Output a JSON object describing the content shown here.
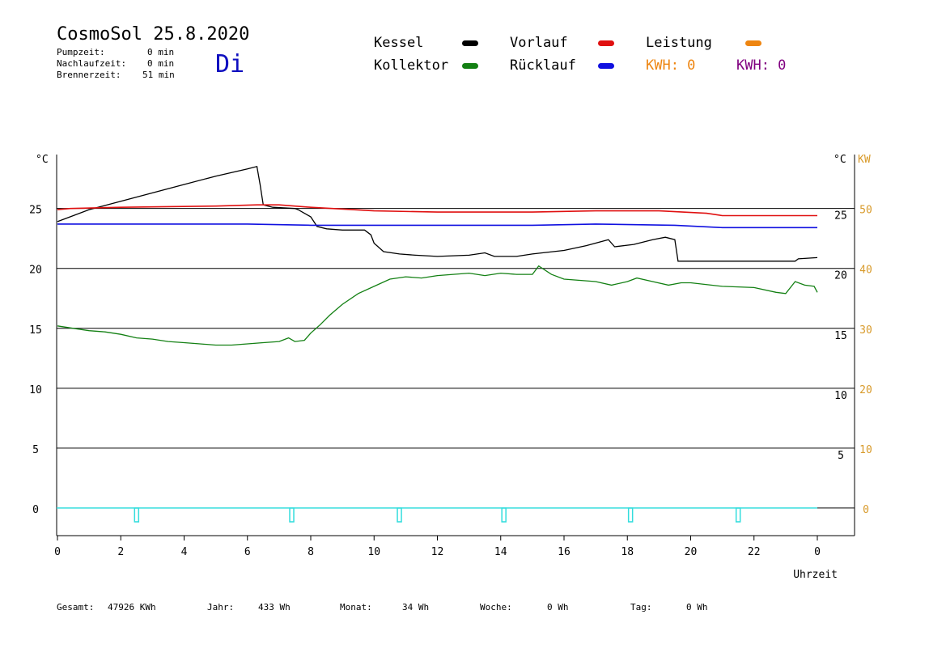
{
  "header": {
    "title": "CosmoSol 25.8.2020",
    "pumpzeit_label": "Pumpzeit:",
    "pumpzeit_value": "0 min",
    "nachlauf_label": "Nachlaufzeit:",
    "nachlauf_value": "0 min",
    "brenner_label": "Brennerzeit:",
    "brenner_value": "51 min",
    "day": "Di"
  },
  "legend": {
    "kessel": "Kessel",
    "kollektor": "Kollektor",
    "vorlauf": "Vorlauf",
    "ruecklauf": "Rücklauf",
    "leistung": "Leistung",
    "kwh1": "KWH: 0",
    "kwh2": "KWH: 0"
  },
  "colors": {
    "kessel": "#000000",
    "kollektor": "#138013",
    "vorlauf": "#e01010",
    "ruecklauf": "#1010e0",
    "leistung": "#ee8510",
    "kwh2": "#800080",
    "pump": "#33dddd",
    "orange_axis": "#d89a2a"
  },
  "stats": {
    "gesamt_label": "Gesamt:",
    "gesamt_value": "47926 KWh",
    "jahr_label": "Jahr:",
    "jahr_value": "433 Wh",
    "monat_label": "Monat:",
    "monat_value": "34 Wh",
    "woche_label": "Woche:",
    "woche_value": "0 Wh",
    "tag_label": "Tag:",
    "tag_value": "0 Wh"
  },
  "chart_data": {
    "type": "line",
    "xlabel": "Uhrzeit",
    "ylabel_left": "°C",
    "ylabel_right": "°C",
    "ylabel_right2": "KW",
    "xlim": [
      0,
      24
    ],
    "ylim": [
      -2.3,
      29.5
    ],
    "x_ticks": [
      "0",
      "2",
      "4",
      "6",
      "8",
      "10",
      "12",
      "14",
      "16",
      "18",
      "20",
      "22",
      "0"
    ],
    "y_ticks_left": [
      "0",
      "5",
      "10",
      "15",
      "20",
      "25"
    ],
    "y_ticks_right": [
      "5",
      "10",
      "15",
      "20",
      "25"
    ],
    "y_ticks_right2": [
      "0",
      "10",
      "20",
      "30",
      "40",
      "50"
    ],
    "gridlines": [
      0,
      5,
      10,
      15,
      20,
      25
    ],
    "series": [
      {
        "name": "Kessel",
        "color_key": "kessel",
        "points": [
          [
            0,
            23.9
          ],
          [
            0.5,
            24.4
          ],
          [
            1,
            24.9
          ],
          [
            2,
            25.6
          ],
          [
            3,
            26.3
          ],
          [
            4,
            27.0
          ],
          [
            5,
            27.7
          ],
          [
            6,
            28.3
          ],
          [
            6.3,
            28.5
          ],
          [
            6.4,
            27.0
          ],
          [
            6.5,
            25.3
          ],
          [
            6.8,
            25.1
          ],
          [
            7.5,
            25.0
          ],
          [
            7.6,
            24.9
          ],
          [
            8,
            24.3
          ],
          [
            8.2,
            23.5
          ],
          [
            8.5,
            23.3
          ],
          [
            9,
            23.2
          ],
          [
            9.7,
            23.2
          ],
          [
            9.9,
            22.8
          ],
          [
            10,
            22.1
          ],
          [
            10.3,
            21.4
          ],
          [
            10.8,
            21.2
          ],
          [
            11.3,
            21.1
          ],
          [
            12,
            21.0
          ],
          [
            13,
            21.1
          ],
          [
            13.5,
            21.3
          ],
          [
            13.8,
            21.0
          ],
          [
            14.5,
            21.0
          ],
          [
            15,
            21.2
          ],
          [
            16,
            21.5
          ],
          [
            16.7,
            21.9
          ],
          [
            17.4,
            22.4
          ],
          [
            17.6,
            21.8
          ],
          [
            18.2,
            22.0
          ],
          [
            18.8,
            22.4
          ],
          [
            19.2,
            22.6
          ],
          [
            19.5,
            22.4
          ],
          [
            19.6,
            20.6
          ],
          [
            20,
            20.6
          ],
          [
            22,
            20.6
          ],
          [
            23.3,
            20.6
          ],
          [
            23.4,
            20.8
          ],
          [
            24,
            20.9
          ]
        ]
      },
      {
        "name": "Vorlauf",
        "color_key": "vorlauf",
        "points": [
          [
            0,
            24.9
          ],
          [
            0.4,
            25.0
          ],
          [
            2,
            25.1
          ],
          [
            5,
            25.2
          ],
          [
            6.3,
            25.3
          ],
          [
            7,
            25.3
          ],
          [
            8,
            25.1
          ],
          [
            10,
            24.8
          ],
          [
            12,
            24.7
          ],
          [
            15,
            24.7
          ],
          [
            17,
            24.8
          ],
          [
            19,
            24.8
          ],
          [
            20.5,
            24.6
          ],
          [
            21,
            24.4
          ],
          [
            24,
            24.4
          ]
        ]
      },
      {
        "name": "Rücklauf",
        "color_key": "ruecklauf",
        "points": [
          [
            0,
            23.7
          ],
          [
            6,
            23.7
          ],
          [
            8,
            23.6
          ],
          [
            11,
            23.6
          ],
          [
            15,
            23.6
          ],
          [
            17,
            23.7
          ],
          [
            19.5,
            23.6
          ],
          [
            21,
            23.4
          ],
          [
            24,
            23.4
          ]
        ]
      },
      {
        "name": "Kollektor",
        "color_key": "kollektor",
        "points": [
          [
            0,
            15.2
          ],
          [
            0.5,
            15.0
          ],
          [
            1,
            14.8
          ],
          [
            1.5,
            14.7
          ],
          [
            2,
            14.5
          ],
          [
            2.5,
            14.2
          ],
          [
            3,
            14.1
          ],
          [
            3.5,
            13.9
          ],
          [
            4,
            13.8
          ],
          [
            4.5,
            13.7
          ],
          [
            5,
            13.6
          ],
          [
            5.5,
            13.6
          ],
          [
            6,
            13.7
          ],
          [
            6.5,
            13.8
          ],
          [
            7,
            13.9
          ],
          [
            7.3,
            14.2
          ],
          [
            7.5,
            13.9
          ],
          [
            7.8,
            14.0
          ],
          [
            8,
            14.6
          ],
          [
            8.3,
            15.3
          ],
          [
            8.6,
            16.1
          ],
          [
            9,
            17.0
          ],
          [
            9.5,
            17.9
          ],
          [
            10,
            18.5
          ],
          [
            10.5,
            19.1
          ],
          [
            11,
            19.3
          ],
          [
            11.5,
            19.2
          ],
          [
            12,
            19.4
          ],
          [
            12.5,
            19.5
          ],
          [
            13,
            19.6
          ],
          [
            13.5,
            19.4
          ],
          [
            14,
            19.6
          ],
          [
            14.5,
            19.5
          ],
          [
            15,
            19.5
          ],
          [
            15.2,
            20.2
          ],
          [
            15.6,
            19.5
          ],
          [
            16,
            19.1
          ],
          [
            17,
            18.9
          ],
          [
            17.5,
            18.6
          ],
          [
            18,
            18.9
          ],
          [
            18.3,
            19.2
          ],
          [
            18.8,
            18.9
          ],
          [
            19.3,
            18.6
          ],
          [
            19.7,
            18.8
          ],
          [
            20,
            18.8
          ],
          [
            21,
            18.5
          ],
          [
            22,
            18.4
          ],
          [
            22.7,
            18.0
          ],
          [
            23,
            17.9
          ],
          [
            23.3,
            18.9
          ],
          [
            23.6,
            18.6
          ],
          [
            23.9,
            18.5
          ],
          [
            24,
            18.0
          ]
        ]
      }
    ],
    "pump_markers_x": [
      2.5,
      7.4,
      10.8,
      14.1,
      18.1,
      21.5
    ]
  }
}
